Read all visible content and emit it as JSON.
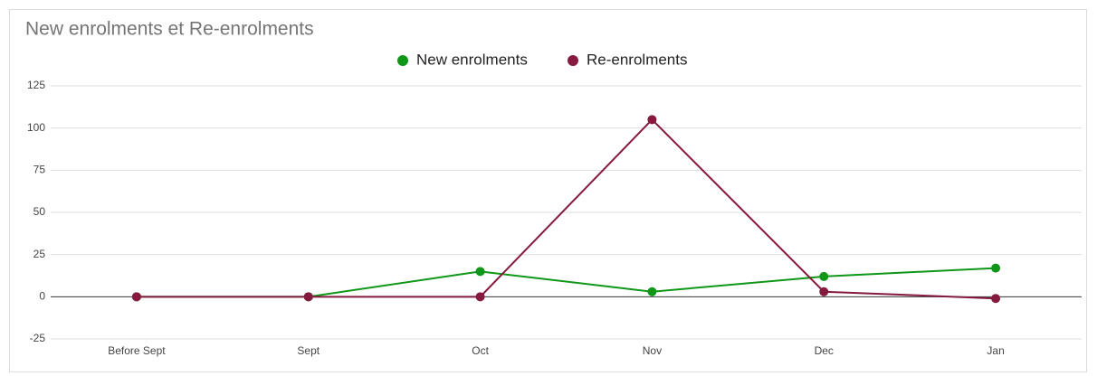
{
  "chart_data": {
    "type": "line",
    "title": "New enrolments et Re-enrolments",
    "categories": [
      "Before Sept",
      "Sept",
      "Oct",
      "Nov",
      "Dec",
      "Jan"
    ],
    "series": [
      {
        "name": "New enrolments",
        "color": "#109618",
        "values": [
          0,
          0,
          15,
          3,
          12,
          17
        ]
      },
      {
        "name": "Re-enrolments",
        "color": "#861a3e",
        "values": [
          0,
          0,
          0,
          105,
          3,
          -1
        ]
      }
    ],
    "ylim": [
      -25,
      125
    ],
    "yticks": [
      -25,
      0,
      25,
      50,
      75,
      100,
      125
    ],
    "grid": true,
    "legend": "top"
  }
}
